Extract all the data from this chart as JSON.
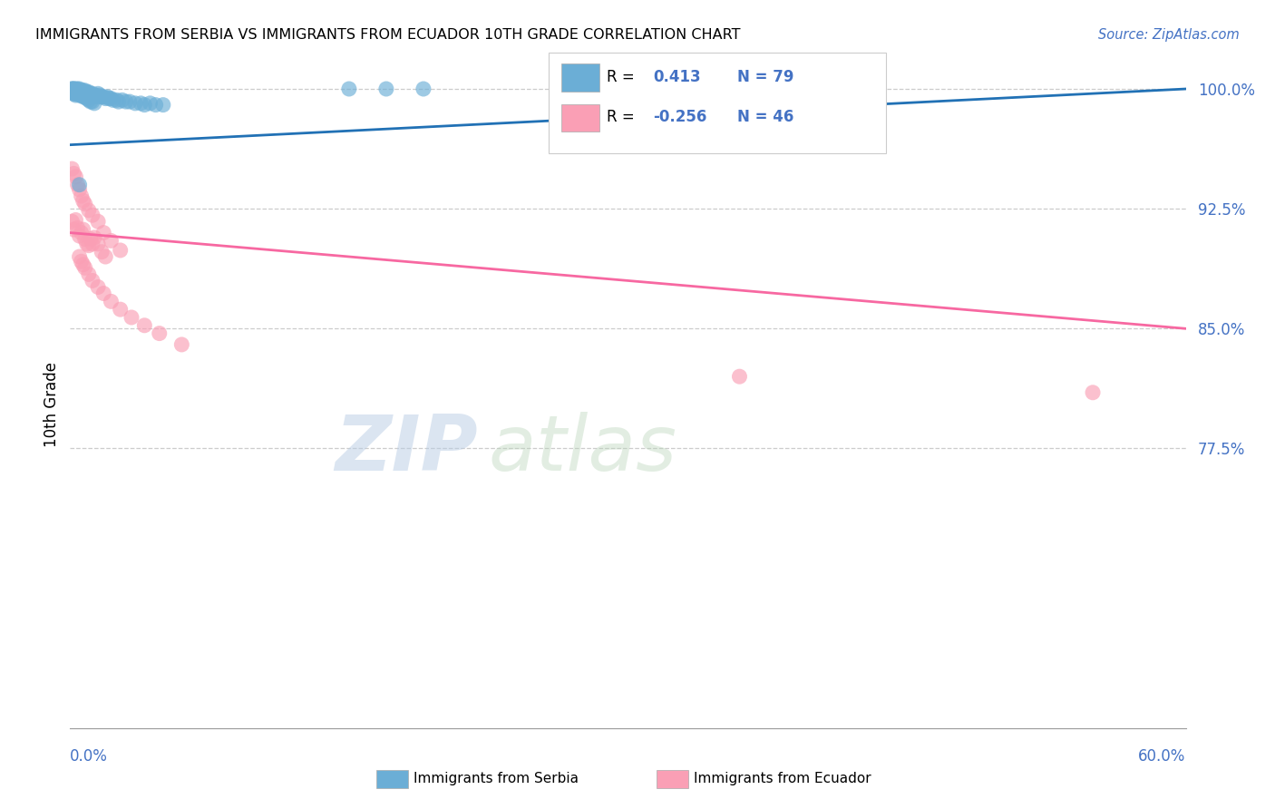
{
  "title": "IMMIGRANTS FROM SERBIA VS IMMIGRANTS FROM ECUADOR 10TH GRADE CORRELATION CHART",
  "source": "Source: ZipAtlas.com",
  "ylabel": "10th Grade",
  "xmin": 0.0,
  "xmax": 0.6,
  "ymin": 0.6,
  "ymax": 1.005,
  "yticks": [
    0.775,
    0.85,
    0.925,
    1.0
  ],
  "ytick_labels": [
    "77.5%",
    "85.0%",
    "92.5%",
    "100.0%"
  ],
  "serbia_color": "#6baed6",
  "ecuador_color": "#fa9fb5",
  "serbia_line_color": "#2171b5",
  "ecuador_line_color": "#f768a1",
  "watermark_zip": "ZIP",
  "watermark_atlas": "atlas",
  "serbia_x": [
    0.001,
    0.001,
    0.001,
    0.002,
    0.002,
    0.002,
    0.002,
    0.002,
    0.003,
    0.003,
    0.003,
    0.003,
    0.004,
    0.004,
    0.004,
    0.004,
    0.005,
    0.005,
    0.005,
    0.005,
    0.006,
    0.006,
    0.006,
    0.006,
    0.007,
    0.007,
    0.007,
    0.008,
    0.008,
    0.008,
    0.009,
    0.009,
    0.01,
    0.01,
    0.01,
    0.011,
    0.011,
    0.012,
    0.012,
    0.013,
    0.014,
    0.015,
    0.015,
    0.016,
    0.017,
    0.018,
    0.019,
    0.02,
    0.021,
    0.022,
    0.023,
    0.025,
    0.026,
    0.028,
    0.03,
    0.032,
    0.035,
    0.038,
    0.04,
    0.043,
    0.046,
    0.05,
    0.001,
    0.002,
    0.002,
    0.003,
    0.003,
    0.004,
    0.005,
    0.006,
    0.007,
    0.008,
    0.009,
    0.01,
    0.011,
    0.012,
    0.013,
    0.15,
    0.17,
    0.19,
    0.005
  ],
  "serbia_y": [
    1.0,
    1.0,
    0.999,
    1.0,
    1.0,
    0.999,
    0.998,
    0.997,
    1.0,
    0.999,
    0.998,
    0.997,
    1.0,
    0.999,
    0.998,
    0.997,
    1.0,
    0.999,
    0.998,
    0.996,
    0.999,
    0.998,
    0.997,
    0.996,
    0.999,
    0.998,
    0.996,
    0.999,
    0.997,
    0.996,
    0.998,
    0.997,
    0.998,
    0.997,
    0.995,
    0.997,
    0.996,
    0.997,
    0.995,
    0.996,
    0.996,
    0.997,
    0.995,
    0.996,
    0.995,
    0.995,
    0.994,
    0.995,
    0.994,
    0.994,
    0.993,
    0.993,
    0.992,
    0.993,
    0.992,
    0.992,
    0.991,
    0.991,
    0.99,
    0.991,
    0.99,
    0.99,
    0.999,
    0.999,
    0.997,
    0.999,
    0.996,
    0.998,
    0.997,
    0.996,
    0.995,
    0.995,
    0.994,
    0.993,
    0.992,
    0.992,
    0.991,
    1.0,
    1.0,
    1.0,
    0.94
  ],
  "ecuador_x": [
    0.001,
    0.002,
    0.003,
    0.004,
    0.005,
    0.006,
    0.007,
    0.008,
    0.009,
    0.01,
    0.011,
    0.012,
    0.013,
    0.015,
    0.017,
    0.019,
    0.001,
    0.002,
    0.003,
    0.004,
    0.005,
    0.006,
    0.007,
    0.008,
    0.01,
    0.012,
    0.015,
    0.018,
    0.022,
    0.027,
    0.005,
    0.006,
    0.007,
    0.008,
    0.01,
    0.012,
    0.015,
    0.018,
    0.022,
    0.027,
    0.033,
    0.04,
    0.048,
    0.06,
    0.36,
    0.55
  ],
  "ecuador_y": [
    0.917,
    0.912,
    0.918,
    0.913,
    0.908,
    0.91,
    0.912,
    0.906,
    0.903,
    0.902,
    0.906,
    0.903,
    0.907,
    0.903,
    0.898,
    0.895,
    0.95,
    0.947,
    0.945,
    0.94,
    0.937,
    0.933,
    0.93,
    0.928,
    0.924,
    0.921,
    0.917,
    0.91,
    0.905,
    0.899,
    0.895,
    0.892,
    0.89,
    0.888,
    0.884,
    0.88,
    0.876,
    0.872,
    0.867,
    0.862,
    0.857,
    0.852,
    0.847,
    0.84,
    0.82,
    0.81
  ],
  "serbia_trend_x": [
    0.0,
    0.6
  ],
  "serbia_trend_y": [
    0.965,
    1.0
  ],
  "ecuador_trend_x": [
    0.0,
    0.6
  ],
  "ecuador_trend_y": [
    0.91,
    0.85
  ]
}
